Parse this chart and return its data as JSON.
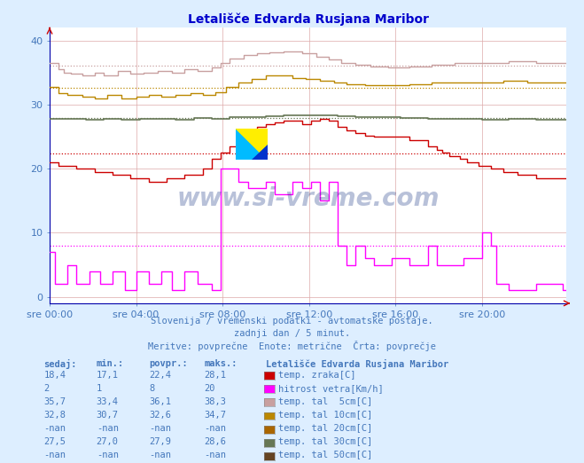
{
  "title": "Letališče Edvarda Rusjana Maribor",
  "title_color": "#0000cc",
  "bg_color": "#ddeeff",
  "plot_bg_color": "#ffffff",
  "grid_color": "#ddaaaa",
  "label_color": "#4477bb",
  "spine_color": "#0000aa",
  "ylim": [
    -1,
    42
  ],
  "yticks": [
    0,
    10,
    20,
    30,
    40
  ],
  "n_points": 288,
  "xtick_labels": [
    "sre 00:00",
    "sre 04:00",
    "sre 08:00",
    "sre 12:00",
    "sre 16:00",
    "sre 20:00"
  ],
  "xtick_positions": [
    0,
    48,
    96,
    144,
    192,
    240
  ],
  "footer_lines": [
    "Slovenija / vremenski podatki - avtomatske postaje.",
    "                zadnji dan / 5 minut.",
    "    Meritve: povprečne  Enote: metrične  Črta: povprečje"
  ],
  "series": [
    {
      "key": "tal5",
      "color": "#c8a0a0",
      "avg": 36.1
    },
    {
      "key": "tal10",
      "color": "#bb8800",
      "avg": 32.6
    },
    {
      "key": "tal30",
      "color": "#667755",
      "avg": 27.9
    },
    {
      "key": "temp_air",
      "color": "#cc0000",
      "avg": 22.4
    },
    {
      "key": "wind",
      "color": "#ff00ff",
      "avg": 8.0
    }
  ],
  "legend_title": "Letališče Edvarda Rusjana Maribor",
  "legend_items": [
    {
      "label": "temp. zraka[C]",
      "color": "#cc0000"
    },
    {
      "label": "hitrost vetra[Km/h]",
      "color": "#ff00ff"
    },
    {
      "label": "temp. tal  5cm[C]",
      "color": "#c8a0a0"
    },
    {
      "label": "temp. tal 10cm[C]",
      "color": "#bb8800"
    },
    {
      "label": "temp. tal 20cm[C]",
      "color": "#aa6600"
    },
    {
      "label": "temp. tal 30cm[C]",
      "color": "#667755"
    },
    {
      "label": "temp. tal 50cm[C]",
      "color": "#664422"
    }
  ],
  "table_headers": [
    "sedaj:",
    "min.:",
    "povpr.:",
    "maks.:"
  ],
  "table_rows": [
    [
      "18,4",
      "17,1",
      "22,4",
      "28,1"
    ],
    [
      "2",
      "1",
      "8",
      "20"
    ],
    [
      "35,7",
      "33,4",
      "36,1",
      "38,3"
    ],
    [
      "32,8",
      "30,7",
      "32,6",
      "34,7"
    ],
    [
      "-nan",
      "-nan",
      "-nan",
      "-nan"
    ],
    [
      "27,5",
      "27,0",
      "27,9",
      "28,6"
    ],
    [
      "-nan",
      "-nan",
      "-nan",
      "-nan"
    ]
  ],
  "watermark": "www.si-vreme.com",
  "watermark_color": "#002277",
  "watermark_alpha": 0.28
}
